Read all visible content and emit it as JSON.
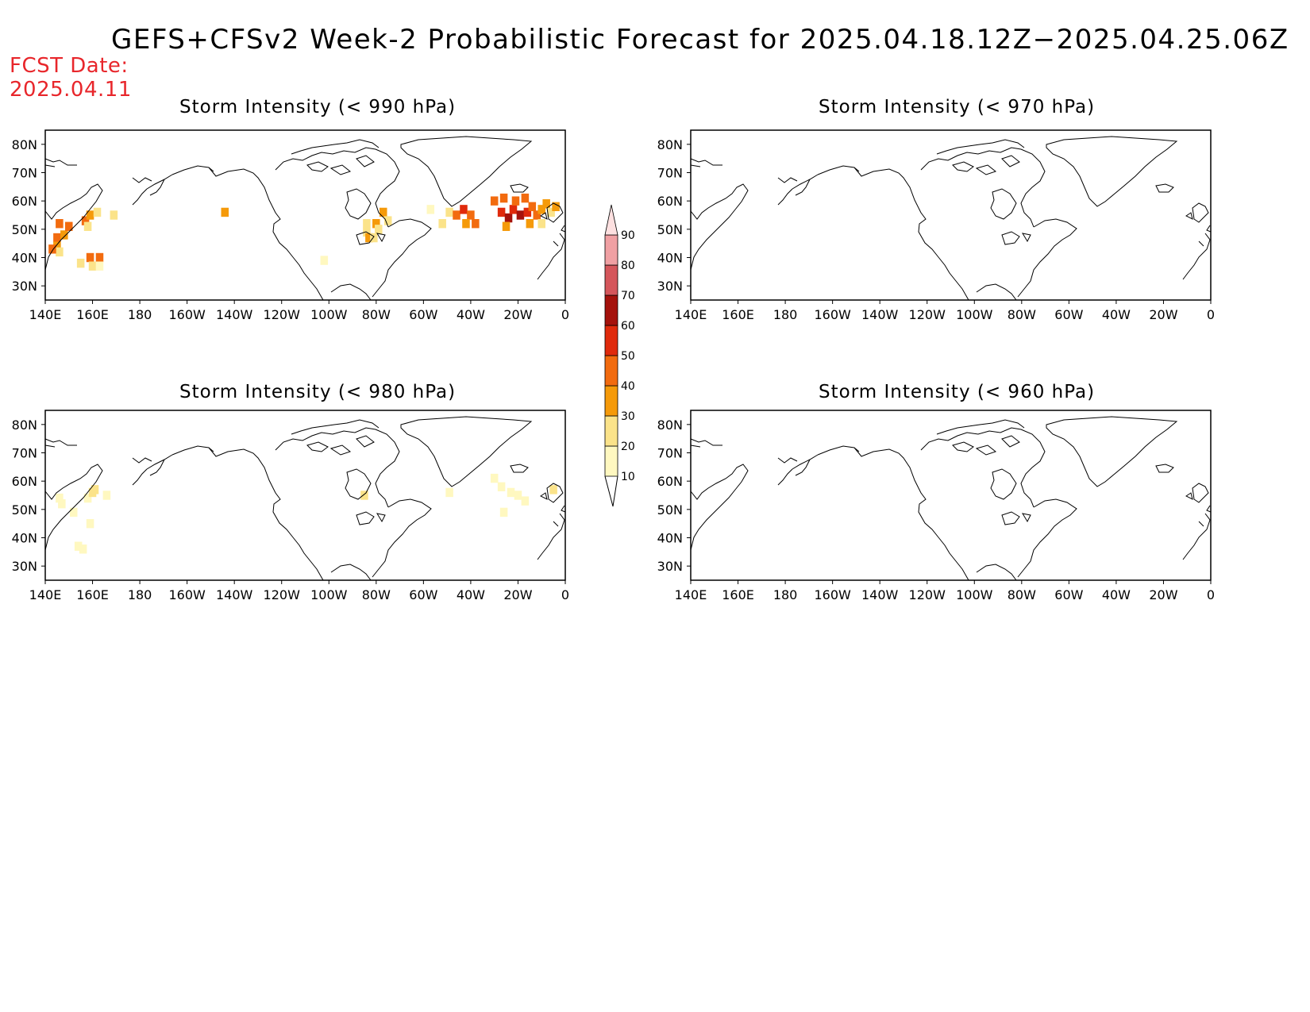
{
  "title": "GEFS+CFSv2 Week-2 Probabilistic Forecast for 2025.04.18.12Z−2025.04.25.06Z",
  "fcst_date_label": "FCST Date:",
  "fcst_date_value": "2025.04.11",
  "panels": [
    {
      "title": "Storm Intensity (< 990 hPa)"
    },
    {
      "title": "Storm Intensity (< 970 hPa)"
    },
    {
      "title": "Storm Intensity (< 980 hPa)"
    },
    {
      "title": "Storm Intensity (< 960 hPa)"
    }
  ],
  "axes": {
    "lat_labels": [
      "80N",
      "70N",
      "60N",
      "50N",
      "40N",
      "30N"
    ],
    "lat_values": [
      80,
      70,
      60,
      50,
      40,
      30
    ],
    "lon_labels": [
      "140E",
      "160E",
      "180",
      "160W",
      "140W",
      "120W",
      "100W",
      "80W",
      "60W",
      "40W",
      "20W",
      "0"
    ],
    "lon_values": [
      140,
      160,
      180,
      200,
      220,
      240,
      260,
      280,
      300,
      320,
      340,
      360
    ],
    "lon_range": [
      140,
      360
    ],
    "lat_range": [
      25,
      85
    ]
  },
  "colorbar": {
    "levels": [
      10,
      20,
      30,
      40,
      50,
      60,
      70,
      80,
      90
    ],
    "colors": [
      "#fff8c0",
      "#fbe38a",
      "#f59a0a",
      "#f26b0f",
      "#e02a0c",
      "#a5120c",
      "#d5565b",
      "#f0a0a3",
      "#fde0e0"
    ]
  },
  "chart_data": {
    "type": "heatmap",
    "value_units": "probability (%)",
    "panels": [
      {
        "title": "Storm Intensity (< 990 hPa)",
        "cells": [
          {
            "lon": 145,
            "lat": 47,
            "level": 40
          },
          {
            "lon": 146,
            "lat": 52,
            "level": 40
          },
          {
            "lon": 148,
            "lat": 48,
            "level": 30
          },
          {
            "lon": 145,
            "lat": 44,
            "level": 30
          },
          {
            "lon": 146,
            "lat": 42,
            "level": 20
          },
          {
            "lon": 150,
            "lat": 51,
            "level": 40
          },
          {
            "lon": 143,
            "lat": 43,
            "level": 40
          },
          {
            "lon": 157,
            "lat": 53,
            "level": 40
          },
          {
            "lon": 159,
            "lat": 55,
            "level": 30
          },
          {
            "lon": 158,
            "lat": 51,
            "level": 20
          },
          {
            "lon": 162,
            "lat": 56,
            "level": 20
          },
          {
            "lon": 163,
            "lat": 40,
            "level": 40
          },
          {
            "lon": 159,
            "lat": 40,
            "level": 40
          },
          {
            "lon": 155,
            "lat": 38,
            "level": 20
          },
          {
            "lon": 160,
            "lat": 37,
            "level": 20
          },
          {
            "lon": 163,
            "lat": 37,
            "level": 10
          },
          {
            "lon": 169,
            "lat": 55,
            "level": 20
          },
          {
            "lon": 216,
            "lat": 56,
            "level": 30
          },
          {
            "lon": 280,
            "lat": 52,
            "level": 30
          },
          {
            "lon": 276,
            "lat": 49,
            "level": 20
          },
          {
            "lon": 277,
            "lat": 47,
            "level": 30
          },
          {
            "lon": 279,
            "lat": 47,
            "level": 20
          },
          {
            "lon": 276,
            "lat": 52,
            "level": 20
          },
          {
            "lon": 283,
            "lat": 56,
            "level": 30
          },
          {
            "lon": 285,
            "lat": 53,
            "level": 20
          },
          {
            "lon": 281,
            "lat": 50,
            "level": 20
          },
          {
            "lon": 258,
            "lat": 39,
            "level": 10
          },
          {
            "lon": 303,
            "lat": 57,
            "level": 10
          },
          {
            "lon": 308,
            "lat": 52,
            "level": 20
          },
          {
            "lon": 311,
            "lat": 56,
            "level": 20
          },
          {
            "lon": 314,
            "lat": 55,
            "level": 40
          },
          {
            "lon": 317,
            "lat": 57,
            "level": 50
          },
          {
            "lon": 320,
            "lat": 55,
            "level": 40
          },
          {
            "lon": 322,
            "lat": 52,
            "level": 40
          },
          {
            "lon": 318,
            "lat": 52,
            "level": 30
          },
          {
            "lon": 330,
            "lat": 60,
            "level": 40
          },
          {
            "lon": 334,
            "lat": 61,
            "level": 40
          },
          {
            "lon": 333,
            "lat": 56,
            "level": 50
          },
          {
            "lon": 336,
            "lat": 54,
            "level": 60
          },
          {
            "lon": 338,
            "lat": 57,
            "level": 50
          },
          {
            "lon": 341,
            "lat": 55,
            "level": 60
          },
          {
            "lon": 344,
            "lat": 56,
            "level": 50
          },
          {
            "lon": 346,
            "lat": 58,
            "level": 40
          },
          {
            "lon": 339,
            "lat": 60,
            "level": 40
          },
          {
            "lon": 343,
            "lat": 61,
            "level": 40
          },
          {
            "lon": 348,
            "lat": 55,
            "level": 40
          },
          {
            "lon": 350,
            "lat": 57,
            "level": 30
          },
          {
            "lon": 352,
            "lat": 59,
            "level": 30
          },
          {
            "lon": 354,
            "lat": 56,
            "level": 20
          },
          {
            "lon": 356,
            "lat": 58,
            "level": 30
          },
          {
            "lon": 345,
            "lat": 52,
            "level": 30
          },
          {
            "lon": 350,
            "lat": 52,
            "level": 20
          },
          {
            "lon": 335,
            "lat": 51,
            "level": 30
          }
        ]
      },
      {
        "title": "Storm Intensity (< 970 hPa)",
        "cells": []
      },
      {
        "title": "Storm Intensity (< 980 hPa)",
        "cells": [
          {
            "lon": 146,
            "lat": 54,
            "level": 10
          },
          {
            "lon": 147,
            "lat": 52,
            "level": 10
          },
          {
            "lon": 152,
            "lat": 49,
            "level": 10
          },
          {
            "lon": 158,
            "lat": 54,
            "level": 10
          },
          {
            "lon": 160,
            "lat": 56,
            "level": 20
          },
          {
            "lon": 161,
            "lat": 57,
            "level": 20
          },
          {
            "lon": 159,
            "lat": 45,
            "level": 10
          },
          {
            "lon": 154,
            "lat": 37,
            "level": 10
          },
          {
            "lon": 156,
            "lat": 36,
            "level": 10
          },
          {
            "lon": 166,
            "lat": 55,
            "level": 10
          },
          {
            "lon": 275,
            "lat": 55,
            "level": 20
          },
          {
            "lon": 311,
            "lat": 56,
            "level": 10
          },
          {
            "lon": 330,
            "lat": 61,
            "level": 10
          },
          {
            "lon": 333,
            "lat": 58,
            "level": 10
          },
          {
            "lon": 337,
            "lat": 56,
            "level": 10
          },
          {
            "lon": 340,
            "lat": 55,
            "level": 10
          },
          {
            "lon": 343,
            "lat": 53,
            "level": 10
          },
          {
            "lon": 334,
            "lat": 49,
            "level": 10
          },
          {
            "lon": 355,
            "lat": 57,
            "level": 20
          }
        ]
      },
      {
        "title": "Storm Intensity (< 960 hPa)",
        "cells": []
      }
    ]
  }
}
